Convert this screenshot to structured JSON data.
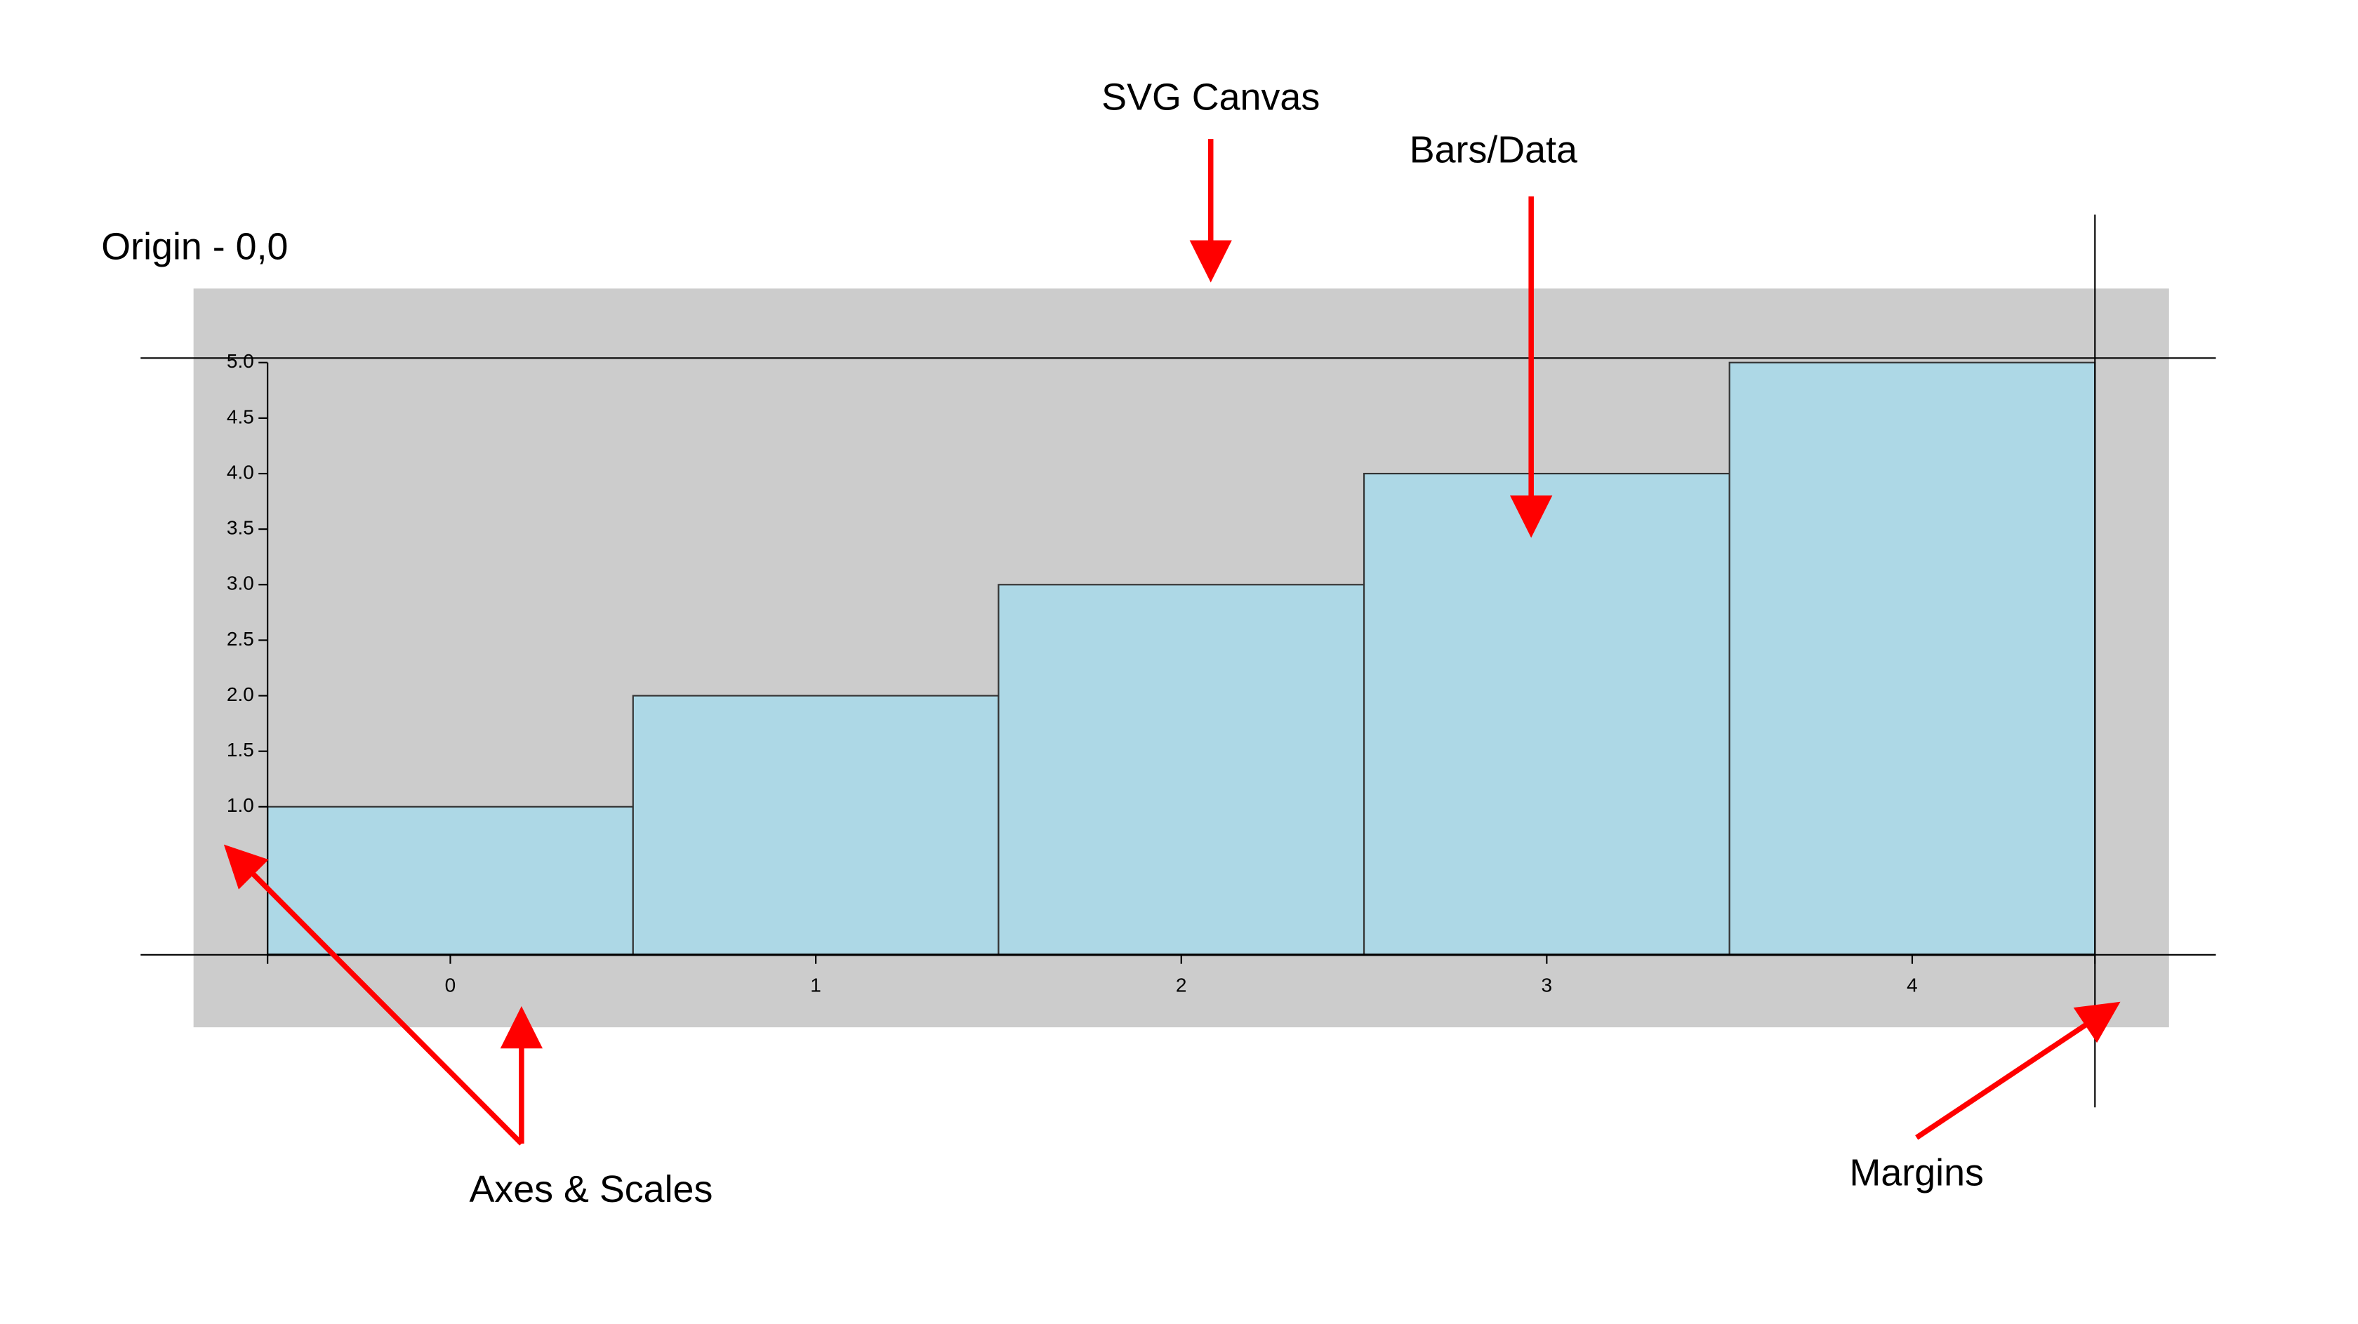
{
  "chart_data": {
    "type": "bar",
    "categories": [
      "0",
      "1",
      "2",
      "3",
      "4"
    ],
    "values": [
      1,
      2,
      3,
      4,
      5
    ],
    "color": "#add8e6",
    "ylim": [
      -0.333,
      5
    ],
    "yticks": [
      {
        "value": 1,
        "label": "1.0"
      },
      {
        "value": 1.5,
        "label": "1.5"
      },
      {
        "value": 2,
        "label": "2.0"
      },
      {
        "value": 2.5,
        "label": "2.5"
      },
      {
        "value": 3,
        "label": "3.0"
      },
      {
        "value": 3.5,
        "label": "3.5"
      },
      {
        "value": 4,
        "label": "4.0"
      },
      {
        "value": 4.5,
        "label": "4.5"
      },
      {
        "value": 5,
        "label": "5.0"
      }
    ],
    "annotations": [
      "SVG Canvas",
      "Bars/Data",
      "Origin - 0,0",
      "Axes & Scales",
      "Margins"
    ]
  }
}
